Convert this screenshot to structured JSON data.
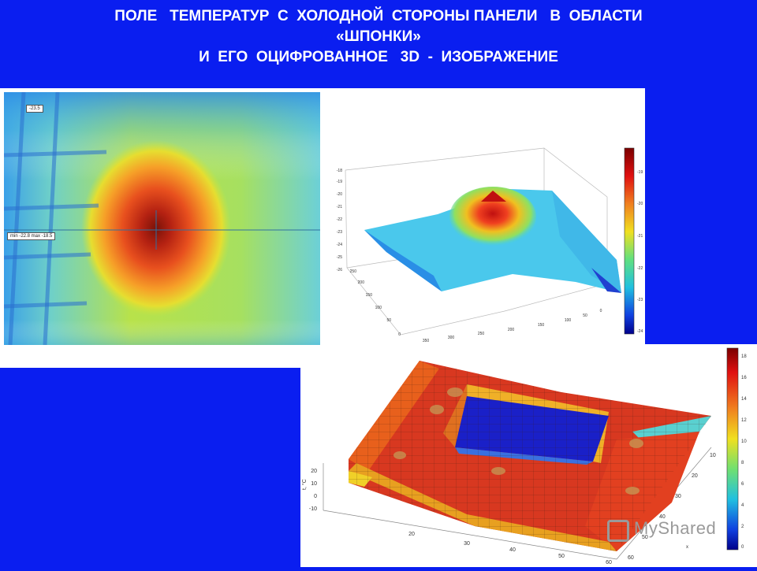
{
  "title": {
    "line1": "ПОЛЕ   ТЕМПЕРАТУР  С  ХОЛОДНОЙ  СТОРОНЫ ПАНЕЛИ   В  ОБЛАСТИ",
    "line2": "«ШПОНКИ»",
    "line3": "И  ЕГО  ОЦИФРОВАННОЕ   3D  -  ИЗОБРАЖЕНИЕ"
  },
  "thermal_image": {
    "label_top": "-23.5",
    "label_minmax": "min -22.8  max -18.5"
  },
  "surface_top": {
    "z_ticks": [
      "-18",
      "-19",
      "-20",
      "-21",
      "-22",
      "-23",
      "-24",
      "-25",
      "-26"
    ],
    "y_ticks": [
      "250",
      "200",
      "150",
      "100",
      "50",
      "0"
    ],
    "x_ticks": [
      "350",
      "300",
      "250",
      "200",
      "150",
      "100",
      "50",
      "0"
    ],
    "colorbar_ticks": [
      "-19",
      "-20",
      "-21",
      "-22",
      "-23",
      "-24"
    ]
  },
  "surface_bottom": {
    "z_label": "t, °C",
    "z_ticks": [
      "20",
      "10",
      "0",
      "-10"
    ],
    "x_ticks": [
      "20",
      "30",
      "40",
      "50",
      "60"
    ],
    "y_ticks": [
      "10",
      "20",
      "30",
      "40",
      "50",
      "60"
    ],
    "x_label": "x",
    "colorbar_ticks": [
      "18",
      "16",
      "14",
      "12",
      "10",
      "8",
      "6",
      "4",
      "2",
      "0"
    ]
  },
  "watermark": "MyShared"
}
